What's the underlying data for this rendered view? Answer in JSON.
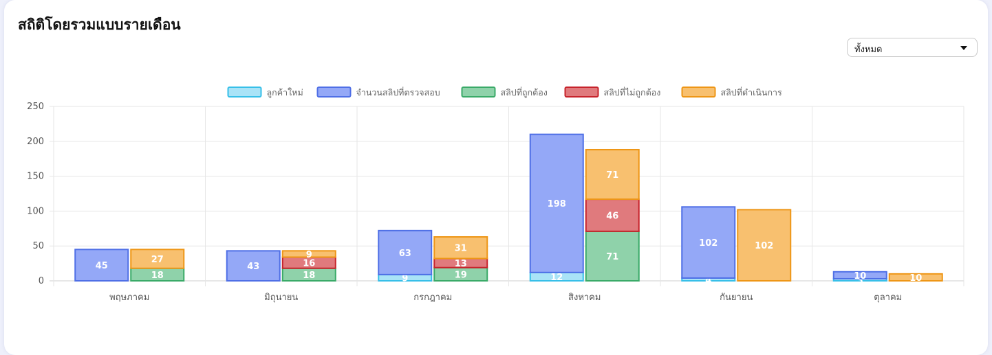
{
  "card": {
    "title": "สถิติโดยรวมแบบรายเดือน"
  },
  "filter": {
    "selected": "ทั้งหมด"
  },
  "chart_data": {
    "type": "bar",
    "stacked": true,
    "categories": [
      "พฤษภาคม",
      "มิถุนายน",
      "กรกฎาคม",
      "สิงหาคม",
      "กันยายน",
      "ตุลาคม"
    ],
    "ylim": [
      0,
      250
    ],
    "yticks": [
      0,
      50,
      100,
      150,
      200,
      250
    ],
    "grid": true,
    "legend_position": "top",
    "series": [
      {
        "name": "ลูกค้าใหม่",
        "stack": 1,
        "fill": "#a9e3f7",
        "stroke": "#37bfe8",
        "values": [
          0,
          0,
          9,
          12,
          4,
          3
        ],
        "labels": [
          "",
          "",
          "9",
          "12",
          "4",
          "3"
        ]
      },
      {
        "name": "จำนวนสลิปที่ตรวจสอบ",
        "stack": 1,
        "fill": "#94a8f7",
        "stroke": "#4f6fe6",
        "values": [
          45,
          43,
          63,
          198,
          102,
          10
        ],
        "labels": [
          "45",
          "43",
          "63",
          "198",
          "102",
          "10"
        ]
      },
      {
        "name": "สลิปที่ถูกต้อง",
        "stack": 2,
        "fill": "#8fd2aa",
        "stroke": "#3aaa68",
        "values": [
          18,
          18,
          19,
          71,
          0,
          0
        ],
        "labels": [
          "18",
          "18",
          "19",
          "71",
          "",
          ""
        ]
      },
      {
        "name": "สลิปที่ไม่ถูกต้อง",
        "stack": 2,
        "fill": "#e07a7d",
        "stroke": "#c7232b",
        "values": [
          0,
          16,
          13,
          46,
          0,
          0
        ],
        "labels": [
          "",
          "16",
          "13",
          "46",
          "",
          ""
        ]
      },
      {
        "name": "สลิปที่ดำเนินการ",
        "stack": 2,
        "fill": "#f8c06f",
        "stroke": "#ee9616",
        "values": [
          27,
          9,
          31,
          71,
          102,
          10
        ],
        "labels": [
          "27",
          "9",
          "31",
          "71",
          "102",
          "10"
        ]
      }
    ]
  }
}
